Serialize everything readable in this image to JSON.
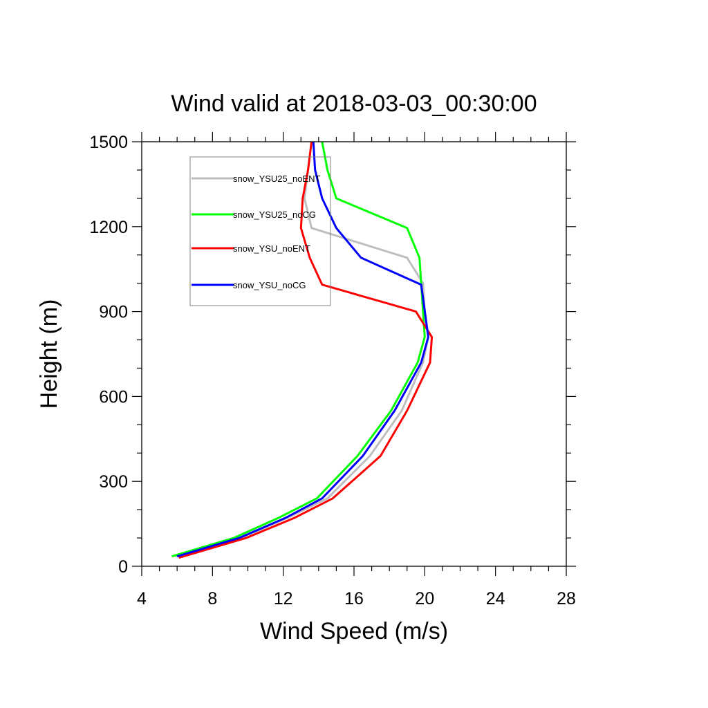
{
  "chart_data": {
    "type": "line",
    "title": "Wind valid at 2018-03-03_00:30:00",
    "xlabel": "Wind Speed (m/s)",
    "ylabel": "Height (m)",
    "xlim": [
      4,
      28
    ],
    "ylim": [
      0,
      1500
    ],
    "xticks": [
      "4",
      "8",
      "12",
      "16",
      "20",
      "24",
      "28"
    ],
    "yticks": [
      "0",
      "300",
      "600",
      "900",
      "1200",
      "1500"
    ],
    "grid": false,
    "legend_position": "top-left",
    "series": [
      {
        "name": "snow_YSU25_noENT",
        "color": "#bebebe",
        "x": [
          5.9,
          9.6,
          12.2,
          14.5,
          16.9,
          18.7,
          19.9,
          20.2,
          20.0,
          19.9,
          19.0,
          13.6,
          13.2,
          13.4,
          13.6
        ],
        "y": [
          35,
          100,
          170,
          240,
          390,
          550,
          720,
          810,
          900,
          1000,
          1090,
          1195,
          1300,
          1400,
          1500
        ]
      },
      {
        "name": "snow_YSU25_noCG",
        "color": "#00ff00",
        "x": [
          5.7,
          9.2,
          11.7,
          13.9,
          16.2,
          18.1,
          19.6,
          20.0,
          19.9,
          19.7,
          19.0,
          15.0,
          14.5,
          14.2
        ],
        "y": [
          35,
          100,
          170,
          240,
          390,
          550,
          720,
          810,
          900,
          1090,
          1195,
          1300,
          1400,
          1500
        ]
      },
      {
        "name": "snow_YSU_noENT",
        "color": "#ff0000",
        "x": [
          6.1,
          9.9,
          12.6,
          14.8,
          17.5,
          19.0,
          20.3,
          20.4,
          19.5,
          14.2,
          13.5,
          13.0,
          13.1,
          13.4,
          13.6
        ],
        "y": [
          30,
          100,
          170,
          240,
          390,
          550,
          720,
          810,
          900,
          995,
          1090,
          1195,
          1300,
          1400,
          1500
        ]
      },
      {
        "name": "snow_YSU_noCG",
        "color": "#0000ff",
        "x": [
          6.0,
          9.5,
          12.1,
          14.2,
          16.5,
          18.3,
          19.8,
          20.2,
          19.8,
          16.4,
          15.0,
          14.2,
          13.8,
          13.7
        ],
        "y": [
          35,
          100,
          170,
          240,
          390,
          550,
          720,
          810,
          995,
          1090,
          1195,
          1300,
          1400,
          1500
        ]
      }
    ]
  }
}
